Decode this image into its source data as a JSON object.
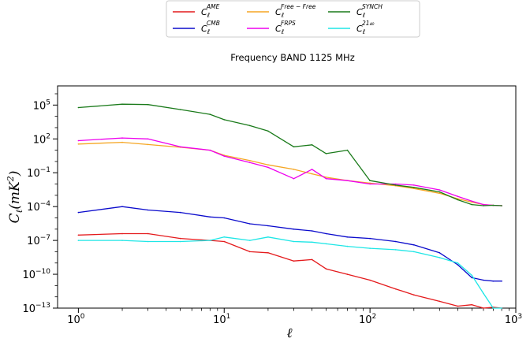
{
  "title": "Frequency BAND 1125 MHz",
  "chart_data": {
    "type": "line",
    "title": "Frequency BAND 1125 MHz",
    "xlabel": "ℓ",
    "ylabel": "C_ℓ(mK²)",
    "xscale": "log",
    "yscale": "log",
    "xlim": [
      0.72,
      1000
    ],
    "ylim": [
      1e-13,
      5000000.0
    ],
    "x_ticks": [
      {
        "mant": "10",
        "exp": "0"
      },
      {
        "mant": "10",
        "exp": "1"
      },
      {
        "mant": "10",
        "exp": "2"
      },
      {
        "mant": "10",
        "exp": "3"
      }
    ],
    "y_ticks": [
      {
        "mant": "10",
        "exp": "5"
      },
      {
        "mant": "10",
        "exp": "2"
      },
      {
        "mant": "10",
        "exp": "−1"
      },
      {
        "mant": "10",
        "exp": "−4"
      },
      {
        "mant": "10",
        "exp": "−7"
      },
      {
        "mant": "10",
        "exp": "−10"
      },
      {
        "mant": "10",
        "exp": "−13"
      }
    ],
    "legend_position": "top-center, above plot",
    "grid": false,
    "series": [
      {
        "name": "C_ℓ^AME",
        "label_main": "C",
        "label_sup": "AME",
        "color": "#e41a1c",
        "x": [
          1,
          2,
          3,
          5,
          8,
          10,
          15,
          20,
          30,
          40,
          50,
          70,
          100,
          150,
          200,
          300,
          400,
          500,
          600,
          700,
          800
        ],
        "y": [
          3e-07,
          4e-07,
          4e-07,
          1.5e-07,
          1e-07,
          8e-08,
          1e-08,
          8e-09,
          1.5e-09,
          2e-09,
          3e-10,
          1e-10,
          3e-11,
          5e-12,
          1.5e-12,
          4e-13,
          1.5e-13,
          2e-13,
          1e-13,
          1.2e-13,
          9e-14
        ]
      },
      {
        "name": "C_ℓ^CMB",
        "label_main": "C",
        "label_sup": "CMB",
        "color": "#0b0bcc",
        "x": [
          1,
          2,
          3,
          5,
          8,
          10,
          15,
          20,
          30,
          40,
          50,
          70,
          100,
          150,
          200,
          300,
          400,
          500,
          600,
          700,
          800
        ],
        "y": [
          3e-05,
          0.0001,
          5e-05,
          3e-05,
          1.2e-05,
          1e-05,
          3e-06,
          2e-06,
          1e-06,
          7e-07,
          4e-07,
          2e-07,
          1.5e-07,
          8e-08,
          4e-08,
          8e-09,
          7e-10,
          5e-11,
          3e-11,
          2.5e-11,
          2.5e-11
        ]
      },
      {
        "name": "C_ℓ^Free−Free",
        "label_main": "C",
        "label_sup": "Free − Free",
        "color": "#f5a623",
        "x": [
          1,
          2,
          3,
          5,
          8,
          10,
          15,
          20,
          30,
          40,
          50,
          70,
          100,
          150,
          200,
          300,
          400,
          500,
          600,
          700,
          800
        ],
        "y": [
          35,
          50,
          32,
          18,
          10,
          3.5,
          1.2,
          0.5,
          0.2,
          0.08,
          0.04,
          0.02,
          0.012,
          0.007,
          0.004,
          0.0015,
          0.0005,
          0.00025,
          0.00015,
          0.00013,
          0.00012
        ]
      },
      {
        "name": "C_ℓ^FRPS",
        "label_main": "C",
        "label_sup": "FRPS",
        "color": "#ee00ee",
        "x": [
          1,
          2,
          3,
          5,
          8,
          10,
          15,
          20,
          30,
          40,
          50,
          70,
          100,
          150,
          200,
          300,
          400,
          500,
          600,
          700,
          800
        ],
        "y": [
          70,
          120,
          100,
          20,
          10,
          3,
          0.8,
          0.3,
          0.03,
          0.2,
          0.03,
          0.02,
          0.01,
          0.01,
          0.008,
          0.003,
          0.0008,
          0.0003,
          0.00015,
          0.00013,
          0.00012
        ]
      },
      {
        "name": "C_ℓ^SYNCH",
        "label_main": "C",
        "label_sup": "SYNCH",
        "color": "#1a7a1a",
        "x": [
          1,
          2,
          3,
          5,
          8,
          10,
          15,
          20,
          30,
          40,
          50,
          70,
          100,
          150,
          200,
          300,
          400,
          500,
          600,
          700,
          800
        ],
        "y": [
          60000,
          120000,
          110000,
          40000,
          15000,
          5000,
          1500,
          500,
          20,
          30,
          5,
          10,
          0.02,
          0.008,
          0.005,
          0.002,
          0.0004,
          0.00015,
          0.00012,
          0.00013,
          0.00012
        ]
      },
      {
        "name": "C_ℓ^21_40",
        "label_main": "C",
        "label_sup": "21₄₀",
        "color": "#1ee6e6",
        "x": [
          1,
          2,
          3,
          5,
          8,
          10,
          15,
          20,
          30,
          40,
          50,
          70,
          100,
          150,
          200,
          300,
          400,
          500,
          600,
          700,
          800
        ],
        "y": [
          1e-07,
          1e-07,
          8e-08,
          8e-08,
          1e-07,
          2e-07,
          1e-07,
          2e-07,
          8e-08,
          7e-08,
          5e-08,
          3e-08,
          2e-08,
          1.5e-08,
          1e-08,
          3e-09,
          1e-09,
          8e-11,
          2e-12,
          1e-13,
          1e-13
        ]
      }
    ]
  }
}
